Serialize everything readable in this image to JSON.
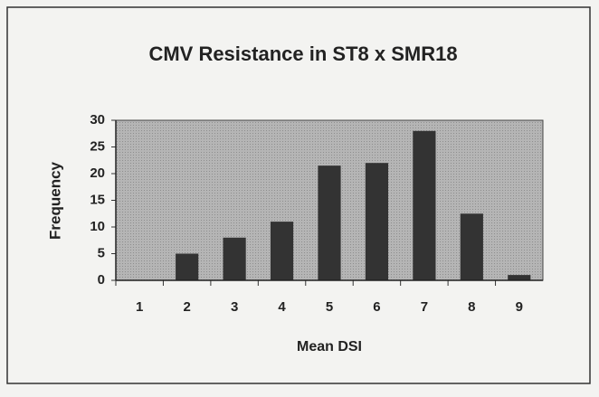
{
  "chart_data": {
    "type": "bar",
    "title": "CMV Resistance in ST8 x SMR18",
    "x_label": "Mean DSI",
    "y_label": "Frequency",
    "categories": [
      "1",
      "2",
      "3",
      "4",
      "5",
      "6",
      "7",
      "8",
      "9"
    ],
    "values": [
      0,
      5,
      8,
      11,
      21.5,
      22,
      28,
      12.5,
      1
    ],
    "color": "#333333",
    "plot_background": "#b5b5b5",
    "ylim": [
      0,
      30
    ],
    "yticks": [
      0,
      5,
      10,
      15,
      20,
      25,
      30
    ],
    "grid": false
  }
}
